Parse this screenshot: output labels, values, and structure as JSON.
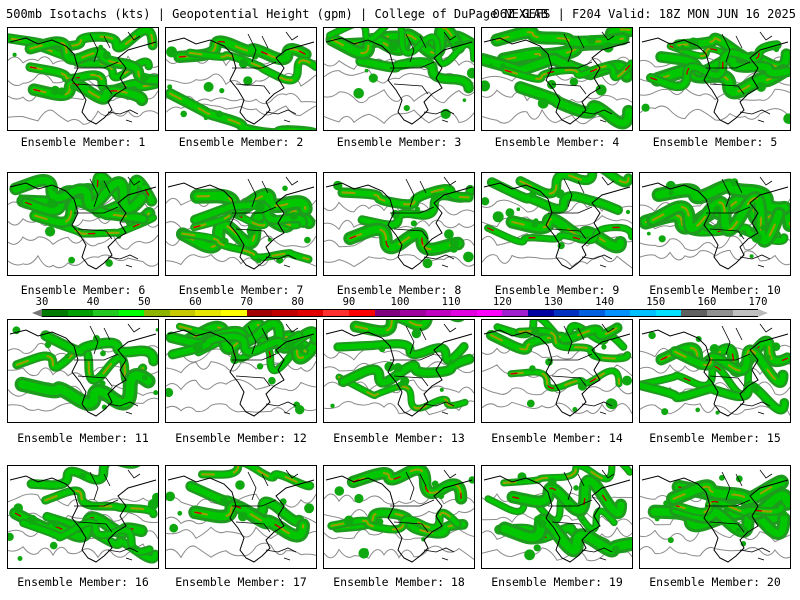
{
  "header": {
    "left_text": "500mb Isotachs (kts) | Geopotential Height (gpm) | College of DuPage NEXLAB",
    "right_text": "06Z GEFS | F204 Valid: 18Z MON JUN 16 2025"
  },
  "members": [
    {
      "label": "Ensemble Member: 1"
    },
    {
      "label": "Ensemble Member: 2"
    },
    {
      "label": "Ensemble Member: 3"
    },
    {
      "label": "Ensemble Member: 4"
    },
    {
      "label": "Ensemble Member: 5"
    },
    {
      "label": "Ensemble Member: 6"
    },
    {
      "label": "Ensemble Member: 7"
    },
    {
      "label": "Ensemble Member: 8"
    },
    {
      "label": "Ensemble Member: 9"
    },
    {
      "label": "Ensemble Member: 10"
    },
    {
      "label": "Ensemble Member: 11"
    },
    {
      "label": "Ensemble Member: 12"
    },
    {
      "label": "Ensemble Member: 13"
    },
    {
      "label": "Ensemble Member: 14"
    },
    {
      "label": "Ensemble Member: 15"
    },
    {
      "label": "Ensemble Member: 16"
    },
    {
      "label": "Ensemble Member: 17"
    },
    {
      "label": "Ensemble Member: 18"
    },
    {
      "label": "Ensemble Member: 19"
    },
    {
      "label": "Ensemble Member: 20"
    }
  ],
  "colorbar": {
    "tick_labels": [
      "30",
      "40",
      "50",
      "60",
      "70",
      "80",
      "90",
      "100",
      "110",
      "120",
      "130",
      "140",
      "150",
      "160",
      "170"
    ],
    "colors": [
      "#007a00",
      "#00a000",
      "#20c820",
      "#00ff00",
      "#8cb400",
      "#c8c800",
      "#e6e600",
      "#ffff00",
      "#a00000",
      "#c00000",
      "#e00000",
      "#ff3030",
      "#ff0000",
      "#800080",
      "#a000a0",
      "#c000c0",
      "#e000e0",
      "#ff00ff",
      "#a020d0",
      "#0000a0",
      "#0030c0",
      "#0060e0",
      "#0090ff",
      "#00c0ff",
      "#00e0ff",
      "#606060",
      "#909090",
      "#c0c0c0"
    ]
  }
}
